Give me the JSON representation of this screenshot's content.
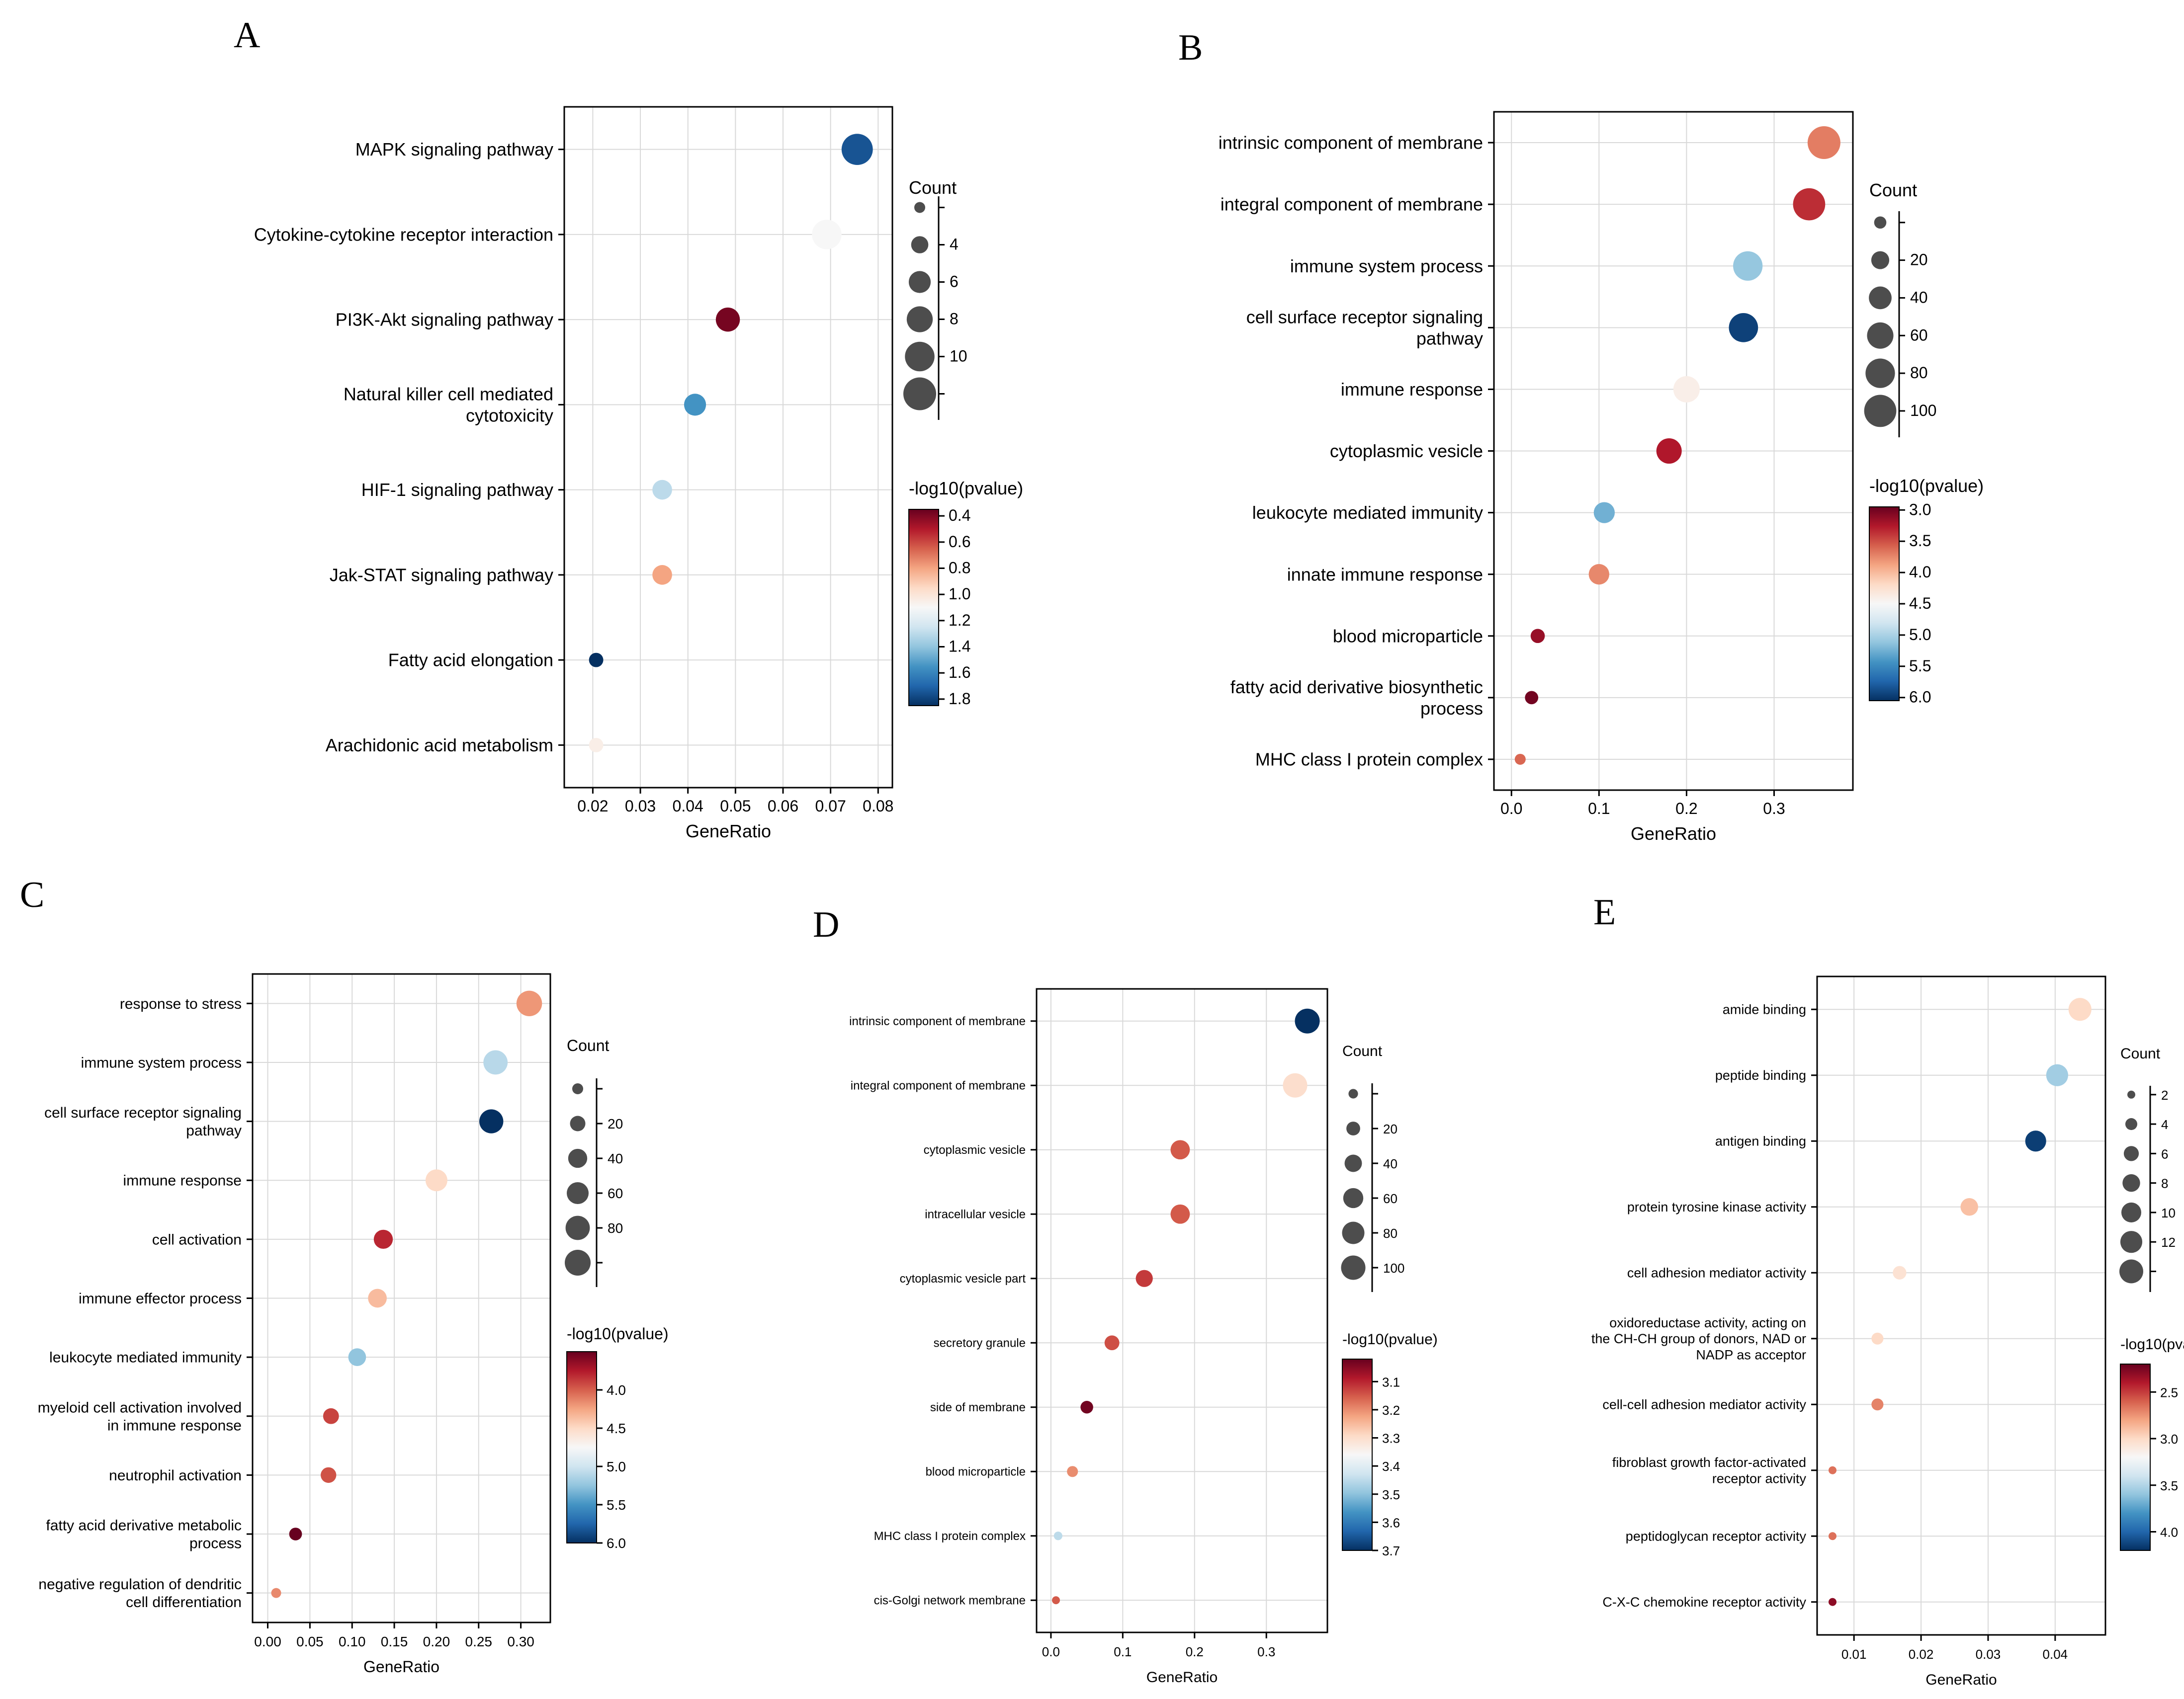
{
  "colors": {
    "scale": [
      "#67001f",
      "#b2182b",
      "#d6604d",
      "#f4a582",
      "#fddbc7",
      "#f7f7f7",
      "#d1e5f0",
      "#92c5de",
      "#4393c3",
      "#2166ac",
      "#053061"
    ],
    "count_dot": "#4d4d4d",
    "grid": "#d9d9d9"
  },
  "chart_data": [
    {
      "panel": "A",
      "type": "scatter",
      "xlabel": "GeneRatio",
      "xlim": [
        0.014,
        0.083
      ],
      "xticks": [
        "0.02",
        "0.03",
        "0.04",
        "0.05",
        "0.06",
        "0.07",
        "0.08"
      ],
      "xtick_values": [
        0.02,
        0.03,
        0.04,
        0.05,
        0.06,
        0.07,
        0.08
      ],
      "terms": [
        {
          "label": [
            "MAPK signaling pathway"
          ],
          "gene_ratio": 0.0756,
          "count": 11,
          "pvalue_log": 1.75
        },
        {
          "label": [
            "Cytokine-cytokine receptor interaction"
          ],
          "gene_ratio": 0.0692,
          "count": 10,
          "pvalue_log": 1.1
        },
        {
          "label": [
            "PI3K-Akt signaling pathway"
          ],
          "gene_ratio": 0.0484,
          "count": 7,
          "pvalue_log": 0.38
        },
        {
          "label": [
            "Natural killer cell mediated",
            "cytotoxicity"
          ],
          "gene_ratio": 0.0415,
          "count": 6,
          "pvalue_log": 1.55
        },
        {
          "label": [
            "HIF-1 signaling pathway"
          ],
          "gene_ratio": 0.0346,
          "count": 5,
          "pvalue_log": 1.3
        },
        {
          "label": [
            "Jak-STAT signaling pathway"
          ],
          "gene_ratio": 0.0346,
          "count": 5,
          "pvalue_log": 0.8
        },
        {
          "label": [
            "Fatty acid elongation"
          ],
          "gene_ratio": 0.0207,
          "count": 3,
          "pvalue_log": 1.85
        },
        {
          "label": [
            "Arachidonic acid metabolism"
          ],
          "gene_ratio": 0.0207,
          "count": 3,
          "pvalue_log": 1.05
        }
      ],
      "count_legend": {
        "title": "Count",
        "values": [
          2,
          4,
          6,
          8,
          10,
          12
        ],
        "tick_labels": [
          "",
          "4",
          "6",
          "8",
          "10",
          ""
        ],
        "size_range": [
          2,
          12
        ]
      },
      "color_legend": {
        "title": "-log10(pvalue)",
        "min": 0.35,
        "max": 1.85,
        "ticks": [
          "0.4",
          "0.6",
          "0.8",
          "1.0",
          "1.2",
          "1.4",
          "1.6",
          "1.8"
        ],
        "tick_values": [
          0.4,
          0.6,
          0.8,
          1.0,
          1.2,
          1.4,
          1.6,
          1.8
        ]
      }
    },
    {
      "panel": "B",
      "type": "scatter",
      "xlabel": "GeneRatio",
      "xlim": [
        -0.02,
        0.39
      ],
      "xticks": [
        "0.0",
        "0.1",
        "0.2",
        "0.3"
      ],
      "xtick_values": [
        0.0,
        0.1,
        0.2,
        0.3
      ],
      "terms": [
        {
          "label": [
            "intrinsic component of membrane"
          ],
          "gene_ratio": 0.357,
          "count": 105,
          "pvalue_log": 3.7
        },
        {
          "label": [
            "integral component of membrane"
          ],
          "gene_ratio": 0.34,
          "count": 100,
          "pvalue_log": 3.35
        },
        {
          "label": [
            "immune system process"
          ],
          "gene_ratio": 0.27,
          "count": 80,
          "pvalue_log": 5.1
        },
        {
          "label": [
            "cell surface receptor signaling",
            "pathway"
          ],
          "gene_ratio": 0.265,
          "count": 78,
          "pvalue_log": 5.95
        },
        {
          "label": [
            "immune response"
          ],
          "gene_ratio": 0.2,
          "count": 60,
          "pvalue_log": 4.4
        },
        {
          "label": [
            "cytoplasmic vesicle"
          ],
          "gene_ratio": 0.18,
          "count": 54,
          "pvalue_log": 3.25
        },
        {
          "label": [
            "leukocyte mediated immunity"
          ],
          "gene_ratio": 0.106,
          "count": 32,
          "pvalue_log": 5.25
        },
        {
          "label": [
            "innate immune response"
          ],
          "gene_ratio": 0.1,
          "count": 30,
          "pvalue_log": 3.75
        },
        {
          "label": [
            "blood microparticle"
          ],
          "gene_ratio": 0.03,
          "count": 9,
          "pvalue_log": 3.15
        },
        {
          "label": [
            "fatty acid derivative biosynthetic",
            "process"
          ],
          "gene_ratio": 0.023,
          "count": 7,
          "pvalue_log": 3.0
        },
        {
          "label": [
            "MHC class I protein complex"
          ],
          "gene_ratio": 0.01,
          "count": 3,
          "pvalue_log": 3.6
        }
      ],
      "count_legend": {
        "title": "Count",
        "values": [
          5,
          20,
          40,
          60,
          80,
          100
        ],
        "tick_labels": [
          "",
          "20",
          "40",
          "60",
          "80",
          "100"
        ],
        "size_range": [
          3,
          105
        ]
      },
      "color_legend": {
        "title": "-log10(pvalue)",
        "min": 2.95,
        "max": 6.05,
        "ticks": [
          "3.0",
          "3.5",
          "4.0",
          "4.5",
          "5.0",
          "5.5",
          "6.0"
        ],
        "tick_values": [
          3.0,
          3.5,
          4.0,
          4.5,
          5.0,
          5.5,
          6.0
        ]
      }
    },
    {
      "panel": "C",
      "type": "scatter",
      "xlabel": "GeneRatio",
      "xlim": [
        -0.018,
        0.335
      ],
      "xticks": [
        "0.00",
        "0.05",
        "0.10",
        "0.15",
        "0.20",
        "0.25",
        "0.30"
      ],
      "xtick_values": [
        0.0,
        0.05,
        0.1,
        0.15,
        0.2,
        0.25,
        0.3
      ],
      "terms": [
        {
          "label": [
            "response to stress"
          ],
          "gene_ratio": 0.31,
          "count": 92,
          "pvalue_log": 4.2
        },
        {
          "label": [
            "immune system process"
          ],
          "gene_ratio": 0.27,
          "count": 80,
          "pvalue_log": 5.1
        },
        {
          "label": [
            "cell surface receptor signaling",
            "pathway"
          ],
          "gene_ratio": 0.265,
          "count": 78,
          "pvalue_log": 6.0
        },
        {
          "label": [
            "immune response"
          ],
          "gene_ratio": 0.2,
          "count": 60,
          "pvalue_log": 4.5
        },
        {
          "label": [
            "cell activation"
          ],
          "gene_ratio": 0.137,
          "count": 40,
          "pvalue_log": 3.8
        },
        {
          "label": [
            "immune effector process"
          ],
          "gene_ratio": 0.13,
          "count": 38,
          "pvalue_log": 4.35
        },
        {
          "label": [
            "leukocyte mediated immunity"
          ],
          "gene_ratio": 0.106,
          "count": 32,
          "pvalue_log": 5.25
        },
        {
          "label": [
            "myeloid cell activation involved",
            "in immune response"
          ],
          "gene_ratio": 0.075,
          "count": 22,
          "pvalue_log": 3.9
        },
        {
          "label": [
            "neutrophil activation"
          ],
          "gene_ratio": 0.072,
          "count": 21,
          "pvalue_log": 3.95
        },
        {
          "label": [
            "fatty acid derivative metabolic",
            "process"
          ],
          "gene_ratio": 0.033,
          "count": 10,
          "pvalue_log": 3.5
        },
        {
          "label": [
            "negative regulation of dendritic",
            "cell differentiation"
          ],
          "gene_ratio": 0.01,
          "count": 3,
          "pvalue_log": 4.15
        }
      ],
      "count_legend": {
        "title": "Count",
        "values": [
          5,
          20,
          40,
          60,
          80,
          95
        ],
        "tick_labels": [
          "",
          "20",
          "40",
          "60",
          "80",
          ""
        ],
        "size_range": [
          3,
          95
        ]
      },
      "color_legend": {
        "title": "-log10(pvalue)",
        "min": 3.5,
        "max": 6.0,
        "ticks": [
          "4.0",
          "4.5",
          "5.0",
          "5.5",
          "6.0"
        ],
        "tick_values": [
          4.0,
          4.5,
          5.0,
          5.5,
          6.0
        ]
      }
    },
    {
      "panel": "D",
      "type": "scatter",
      "xlabel": "GeneRatio",
      "xlim": [
        -0.02,
        0.385
      ],
      "xticks": [
        "0.0",
        "0.1",
        "0.2",
        "0.3"
      ],
      "xtick_values": [
        0.0,
        0.1,
        0.2,
        0.3
      ],
      "terms": [
        {
          "label": [
            "intrinsic component of membrane"
          ],
          "gene_ratio": 0.357,
          "count": 105,
          "pvalue_log": 3.7
        },
        {
          "label": [
            "integral component of membrane"
          ],
          "gene_ratio": 0.34,
          "count": 100,
          "pvalue_log": 3.3
        },
        {
          "label": [
            "cytoplasmic vesicle"
          ],
          "gene_ratio": 0.18,
          "count": 54,
          "pvalue_log": 3.15
        },
        {
          "label": [
            "intracellular vesicle"
          ],
          "gene_ratio": 0.18,
          "count": 54,
          "pvalue_log": 3.15
        },
        {
          "label": [
            "cytoplasmic vesicle part"
          ],
          "gene_ratio": 0.13,
          "count": 38,
          "pvalue_log": 3.12
        },
        {
          "label": [
            "secretory granule"
          ],
          "gene_ratio": 0.085,
          "count": 25,
          "pvalue_log": 3.14
        },
        {
          "label": [
            "side of membrane"
          ],
          "gene_ratio": 0.05,
          "count": 15,
          "pvalue_log": 3.03
        },
        {
          "label": [
            "blood microparticle"
          ],
          "gene_ratio": 0.03,
          "count": 9,
          "pvalue_log": 3.2
        },
        {
          "label": [
            "MHC class I protein complex"
          ],
          "gene_ratio": 0.01,
          "count": 3,
          "pvalue_log": 3.45
        },
        {
          "label": [
            "cis-Golgi network membrane"
          ],
          "gene_ratio": 0.007,
          "count": 2,
          "pvalue_log": 3.15
        }
      ],
      "count_legend": {
        "title": "Count",
        "values": [
          5,
          20,
          40,
          60,
          80,
          100
        ],
        "tick_labels": [
          "",
          "20",
          "40",
          "60",
          "80",
          "100"
        ],
        "size_range": [
          2,
          105
        ]
      },
      "color_legend": {
        "title": "-log10(pvalue)",
        "min": 3.02,
        "max": 3.7,
        "ticks": [
          "3.1",
          "3.2",
          "3.3",
          "3.4",
          "3.5",
          "3.6",
          "3.7"
        ],
        "tick_values": [
          3.1,
          3.2,
          3.3,
          3.4,
          3.5,
          3.6,
          3.7
        ]
      }
    },
    {
      "panel": "E",
      "type": "scatter",
      "xlabel": "GeneRatio",
      "xlim": [
        0.0045,
        0.0475
      ],
      "xticks": [
        "0.01",
        "0.02",
        "0.03",
        "0.04"
      ],
      "xtick_values": [
        0.01,
        0.02,
        0.03,
        0.04
      ],
      "terms": [
        {
          "label": [
            "amide binding"
          ],
          "gene_ratio": 0.0437,
          "count": 13,
          "pvalue_log": 3.0
        },
        {
          "label": [
            "peptide binding"
          ],
          "gene_ratio": 0.0403,
          "count": 12,
          "pvalue_log": 3.55
        },
        {
          "label": [
            "antigen binding"
          ],
          "gene_ratio": 0.0371,
          "count": 11,
          "pvalue_log": 4.15
        },
        {
          "label": [
            "protein tyrosine kinase activity"
          ],
          "gene_ratio": 0.0272,
          "count": 8,
          "pvalue_log": 2.9
        },
        {
          "label": [
            "cell adhesion mediator activity"
          ],
          "gene_ratio": 0.0168,
          "count": 5,
          "pvalue_log": 3.05
        },
        {
          "label": [
            "oxidoreductase activity, acting on",
            "the CH-CH group of donors, NAD or",
            "NADP as acceptor"
          ],
          "gene_ratio": 0.0135,
          "count": 4,
          "pvalue_log": 3.0
        },
        {
          "label": [
            "cell-cell adhesion mediator activity"
          ],
          "gene_ratio": 0.0135,
          "count": 4,
          "pvalue_log": 2.7
        },
        {
          "label": [
            "fibroblast growth factor-activated",
            "receptor activity"
          ],
          "gene_ratio": 0.0068,
          "count": 2,
          "pvalue_log": 2.65
        },
        {
          "label": [
            "peptidoglycan receptor activity"
          ],
          "gene_ratio": 0.0068,
          "count": 2,
          "pvalue_log": 2.65
        },
        {
          "label": [
            "C-X-C chemokine receptor activity"
          ],
          "gene_ratio": 0.0068,
          "count": 2,
          "pvalue_log": 2.3
        }
      ],
      "count_legend": {
        "title": "Count",
        "values": [
          2,
          4,
          6,
          8,
          10,
          12,
          14
        ],
        "tick_labels": [
          "2",
          "4",
          "6",
          "8",
          "10",
          "12",
          ""
        ],
        "size_range": [
          2,
          14
        ]
      },
      "color_legend": {
        "title": "-log10(pvalue)",
        "min": 2.2,
        "max": 4.2,
        "ticks": [
          "2.5",
          "3.0",
          "3.5",
          "4.0"
        ],
        "tick_values": [
          2.5,
          3.0,
          3.5,
          4.0
        ]
      }
    }
  ]
}
